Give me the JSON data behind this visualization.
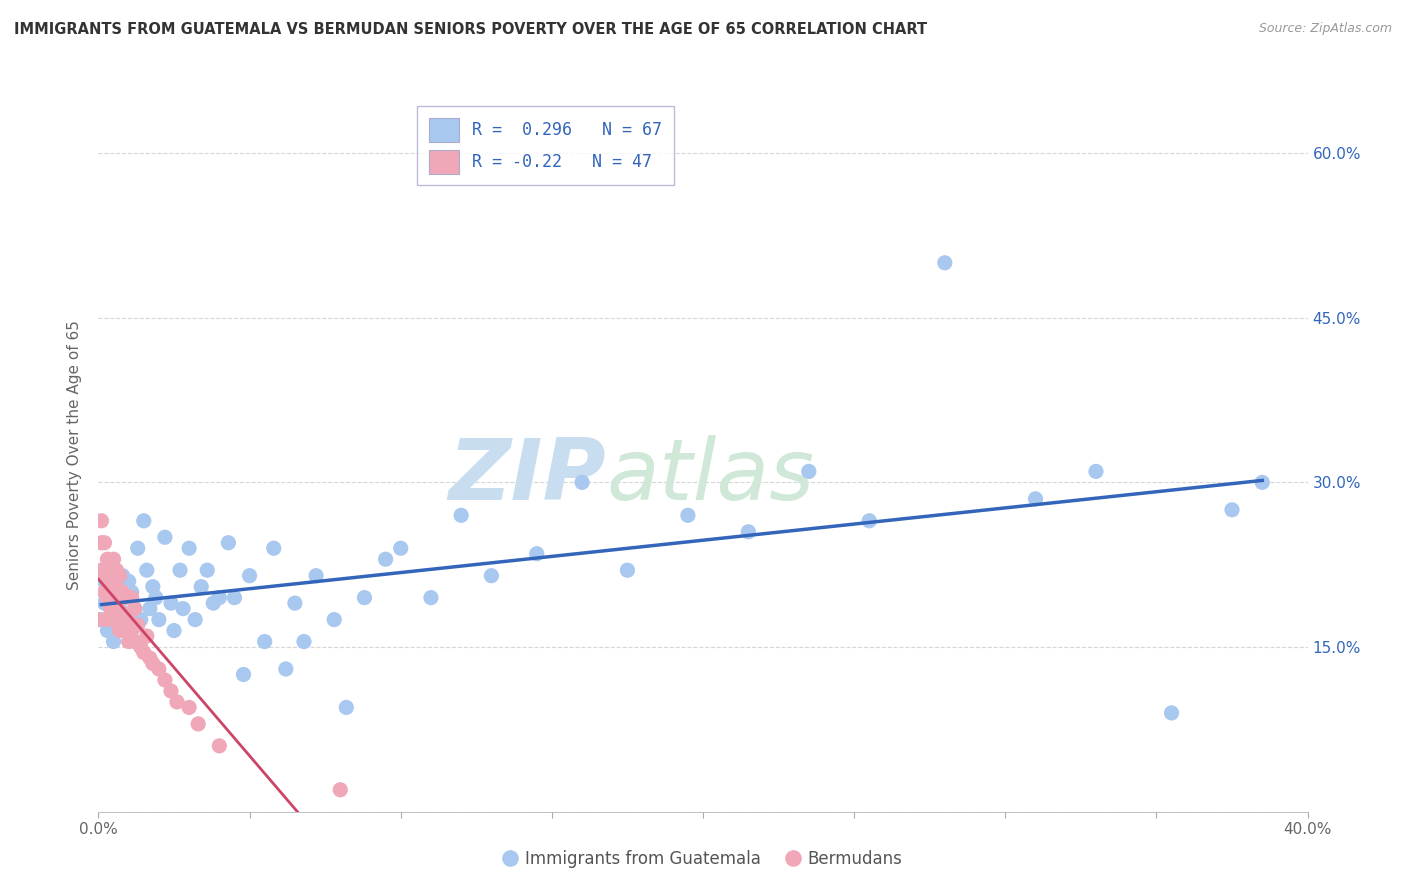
{
  "title": "IMMIGRANTS FROM GUATEMALA VS BERMUDAN SENIORS POVERTY OVER THE AGE OF 65 CORRELATION CHART",
  "source": "Source: ZipAtlas.com",
  "ylabel": "Seniors Poverty Over the Age of 65",
  "xlim": [
    0.0,
    0.4
  ],
  "ylim": [
    0.0,
    0.65
  ],
  "x_ticks": [
    0.0,
    0.05,
    0.1,
    0.15,
    0.2,
    0.25,
    0.3,
    0.35,
    0.4
  ],
  "y_ticks": [
    0.0,
    0.15,
    0.3,
    0.45,
    0.6
  ],
  "y_tick_labels_right": [
    "",
    "15.0%",
    "30.0%",
    "45.0%",
    "60.0%"
  ],
  "x_tick_labels": [
    "0.0%",
    "",
    "",
    "",
    "",
    "",
    "",
    "",
    "40.0%"
  ],
  "blue_R": 0.296,
  "blue_N": 67,
  "pink_R": -0.22,
  "pink_N": 47,
  "blue_color": "#a8c8f0",
  "pink_color": "#f0a8b8",
  "blue_line_color": "#3366bb",
  "pink_line_color": "#cc4466",
  "pink_line_dashed_color": "#e8b0bc",
  "legend_text_color": "#3366bb",
  "blue_scatter_x": [
    0.001,
    0.002,
    0.002,
    0.003,
    0.003,
    0.004,
    0.005,
    0.005,
    0.006,
    0.006,
    0.007,
    0.008,
    0.009,
    0.01,
    0.01,
    0.011,
    0.012,
    0.013,
    0.014,
    0.015,
    0.016,
    0.017,
    0.018,
    0.019,
    0.02,
    0.022,
    0.024,
    0.025,
    0.027,
    0.028,
    0.03,
    0.032,
    0.034,
    0.036,
    0.038,
    0.04,
    0.043,
    0.045,
    0.048,
    0.05,
    0.055,
    0.058,
    0.062,
    0.065,
    0.068,
    0.072,
    0.078,
    0.082,
    0.088,
    0.095,
    0.1,
    0.11,
    0.12,
    0.13,
    0.145,
    0.16,
    0.175,
    0.195,
    0.215,
    0.235,
    0.255,
    0.28,
    0.31,
    0.33,
    0.355,
    0.375,
    0.385
  ],
  "blue_scatter_y": [
    0.175,
    0.19,
    0.21,
    0.165,
    0.195,
    0.205,
    0.155,
    0.18,
    0.2,
    0.175,
    0.185,
    0.215,
    0.17,
    0.195,
    0.21,
    0.2,
    0.185,
    0.24,
    0.175,
    0.265,
    0.22,
    0.185,
    0.205,
    0.195,
    0.175,
    0.25,
    0.19,
    0.165,
    0.22,
    0.185,
    0.24,
    0.175,
    0.205,
    0.22,
    0.19,
    0.195,
    0.245,
    0.195,
    0.125,
    0.215,
    0.155,
    0.24,
    0.13,
    0.19,
    0.155,
    0.215,
    0.175,
    0.095,
    0.195,
    0.23,
    0.24,
    0.195,
    0.27,
    0.215,
    0.235,
    0.3,
    0.22,
    0.27,
    0.255,
    0.31,
    0.265,
    0.5,
    0.285,
    0.31,
    0.09,
    0.275,
    0.3
  ],
  "pink_scatter_x": [
    0.0,
    0.001,
    0.001,
    0.001,
    0.002,
    0.002,
    0.002,
    0.003,
    0.003,
    0.003,
    0.003,
    0.004,
    0.004,
    0.004,
    0.005,
    0.005,
    0.005,
    0.006,
    0.006,
    0.006,
    0.007,
    0.007,
    0.007,
    0.008,
    0.008,
    0.009,
    0.009,
    0.01,
    0.01,
    0.011,
    0.011,
    0.012,
    0.012,
    0.013,
    0.014,
    0.015,
    0.016,
    0.017,
    0.018,
    0.02,
    0.022,
    0.024,
    0.026,
    0.03,
    0.033,
    0.04,
    0.08
  ],
  "pink_scatter_y": [
    0.175,
    0.265,
    0.245,
    0.22,
    0.2,
    0.245,
    0.215,
    0.175,
    0.205,
    0.195,
    0.23,
    0.195,
    0.22,
    0.185,
    0.175,
    0.215,
    0.23,
    0.205,
    0.185,
    0.22,
    0.165,
    0.195,
    0.215,
    0.175,
    0.2,
    0.18,
    0.195,
    0.175,
    0.155,
    0.195,
    0.165,
    0.185,
    0.155,
    0.17,
    0.15,
    0.145,
    0.16,
    0.14,
    0.135,
    0.13,
    0.12,
    0.11,
    0.1,
    0.095,
    0.08,
    0.06,
    0.02
  ],
  "background_color": "#ffffff",
  "grid_color": "#cccccc",
  "watermark_text1": "ZIP",
  "watermark_text2": "atlas",
  "watermark_color1": "#c8ddf0",
  "watermark_color2": "#d0e8d8"
}
